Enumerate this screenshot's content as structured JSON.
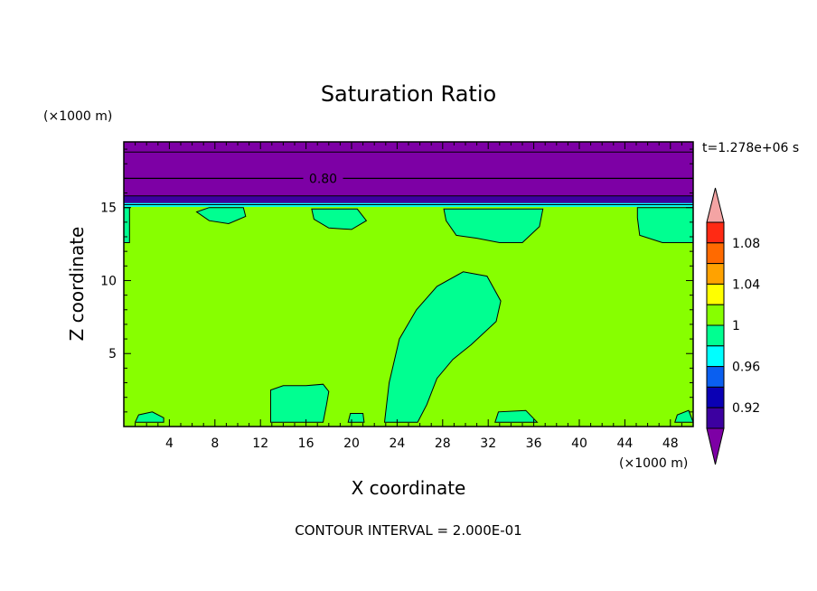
{
  "chart_data": {
    "type": "heatmap",
    "title": "Saturation Ratio",
    "xlabel": "X coordinate",
    "ylabel": "Z coordinate",
    "x_unit": "(×1000 m)",
    "y_unit": "(×1000 m)",
    "time_label": "t=1.278e+06 s",
    "footer": "CONTOUR INTERVAL = 2.000E-01",
    "xlim": [
      0,
      50
    ],
    "ylim": [
      0,
      19.5
    ],
    "x_ticks": [
      4,
      8,
      12,
      16,
      20,
      24,
      28,
      32,
      36,
      40,
      44,
      48
    ],
    "y_ticks": [
      5,
      10,
      15
    ],
    "contour_label": "0.80",
    "contour_label_z": 17,
    "contour_lines_z": [
      18.8,
      17.0,
      15.8,
      15.2
    ],
    "background_value": 1.0,
    "layers": [
      {
        "z_from": 15.8,
        "z_to": 19.5,
        "value": 0.88
      },
      {
        "z_from": 15.3,
        "z_to": 15.8,
        "value": 0.92
      },
      {
        "z_from": 15.05,
        "z_to": 15.3,
        "value": 0.96
      }
    ],
    "regions": [
      {
        "name": "plume",
        "value": 0.98,
        "points": [
          [
            22.9,
            0.3
          ],
          [
            23.3,
            3
          ],
          [
            24.2,
            6
          ],
          [
            25.7,
            8
          ],
          [
            27.5,
            9.6
          ],
          [
            29.8,
            10.6
          ],
          [
            31.9,
            10.3
          ],
          [
            33.1,
            8.6
          ],
          [
            32.7,
            7.2
          ],
          [
            30.5,
            5.6
          ],
          [
            28.9,
            4.6
          ],
          [
            27.5,
            3.3
          ],
          [
            26.6,
            1.5
          ],
          [
            25.8,
            0.3
          ]
        ]
      },
      {
        "name": "low-cell",
        "value": 0.98,
        "points": [
          [
            12.9,
            0.3
          ],
          [
            12.9,
            2.5
          ],
          [
            14,
            2.8
          ],
          [
            16,
            2.8
          ],
          [
            17.5,
            2.9
          ],
          [
            18,
            2.4
          ],
          [
            17.8,
            1.5
          ],
          [
            17.5,
            0.3
          ]
        ]
      },
      {
        "name": "upper-1",
        "value": 0.98,
        "points": [
          [
            6.4,
            14.7
          ],
          [
            7.5,
            15
          ],
          [
            10.5,
            15
          ],
          [
            10.7,
            14.4
          ],
          [
            9.2,
            13.9
          ],
          [
            7.5,
            14.1
          ]
        ]
      },
      {
        "name": "upper-2",
        "value": 0.98,
        "points": [
          [
            16.5,
            14.9
          ],
          [
            20.5,
            14.9
          ],
          [
            21.3,
            14.1
          ],
          [
            20,
            13.5
          ],
          [
            18,
            13.6
          ],
          [
            16.7,
            14.2
          ]
        ]
      },
      {
        "name": "upper-3",
        "value": 0.98,
        "points": [
          [
            28.1,
            14.9
          ],
          [
            36.8,
            14.9
          ],
          [
            36.5,
            13.7
          ],
          [
            35,
            12.6
          ],
          [
            33,
            12.6
          ],
          [
            31,
            12.9
          ],
          [
            29.2,
            13.1
          ],
          [
            28.3,
            14.1
          ]
        ]
      },
      {
        "name": "upper-4",
        "value": 0.98,
        "points": [
          [
            45.1,
            15
          ],
          [
            50,
            15
          ],
          [
            50,
            12.6
          ],
          [
            47.3,
            12.6
          ],
          [
            45.3,
            13.1
          ],
          [
            45.1,
            14.3
          ]
        ]
      },
      {
        "name": "left-edge",
        "value": 0.98,
        "points": [
          [
            0,
            15
          ],
          [
            0.5,
            15
          ],
          [
            0.5,
            12.6
          ],
          [
            0,
            12.6
          ]
        ]
      },
      {
        "name": "bottom-1",
        "value": 0.98,
        "points": [
          [
            1,
            0.3
          ],
          [
            1.3,
            0.8
          ],
          [
            2.5,
            1
          ],
          [
            3.5,
            0.6
          ],
          [
            3.5,
            0.3
          ]
        ]
      },
      {
        "name": "bottom-2",
        "value": 0.98,
        "points": [
          [
            32.6,
            0.3
          ],
          [
            32.9,
            1
          ],
          [
            35.3,
            1.1
          ],
          [
            36.3,
            0.3
          ]
        ]
      },
      {
        "name": "bottom-3",
        "value": 0.98,
        "points": [
          [
            48.4,
            0.3
          ],
          [
            48.6,
            0.8
          ],
          [
            49.6,
            1.1
          ],
          [
            50,
            0.3
          ]
        ]
      },
      {
        "name": "bottom-4",
        "value": 0.98,
        "points": [
          [
            19.7,
            0.3
          ],
          [
            19.9,
            0.9
          ],
          [
            21,
            0.9
          ],
          [
            21.1,
            0.3
          ]
        ]
      }
    ],
    "colorbar": {
      "bins": [
        {
          "color": "#f4a4a4",
          "kind": "over"
        },
        {
          "color": "#ff2a14"
        },
        {
          "color": "#ff6a00"
        },
        {
          "color": "#ffa200"
        },
        {
          "color": "#ffff00"
        },
        {
          "color": "#87ff00"
        },
        {
          "color": "#00ff91"
        },
        {
          "color": "#00ffff"
        },
        {
          "color": "#0a5ff0"
        },
        {
          "color": "#0a00b4"
        },
        {
          "color": "#3c00a0"
        },
        {
          "color": "#7d00a5",
          "kind": "under"
        }
      ],
      "labels": [
        "1.08",
        "1.04",
        "1",
        "0.96",
        "0.92"
      ]
    },
    "colors": {
      "0.88": "#7d00a5",
      "0.92": "#3c00a0",
      "0.96": "#00ffff",
      "0.98": "#00ff91",
      "1.0": "#87ff00"
    }
  }
}
